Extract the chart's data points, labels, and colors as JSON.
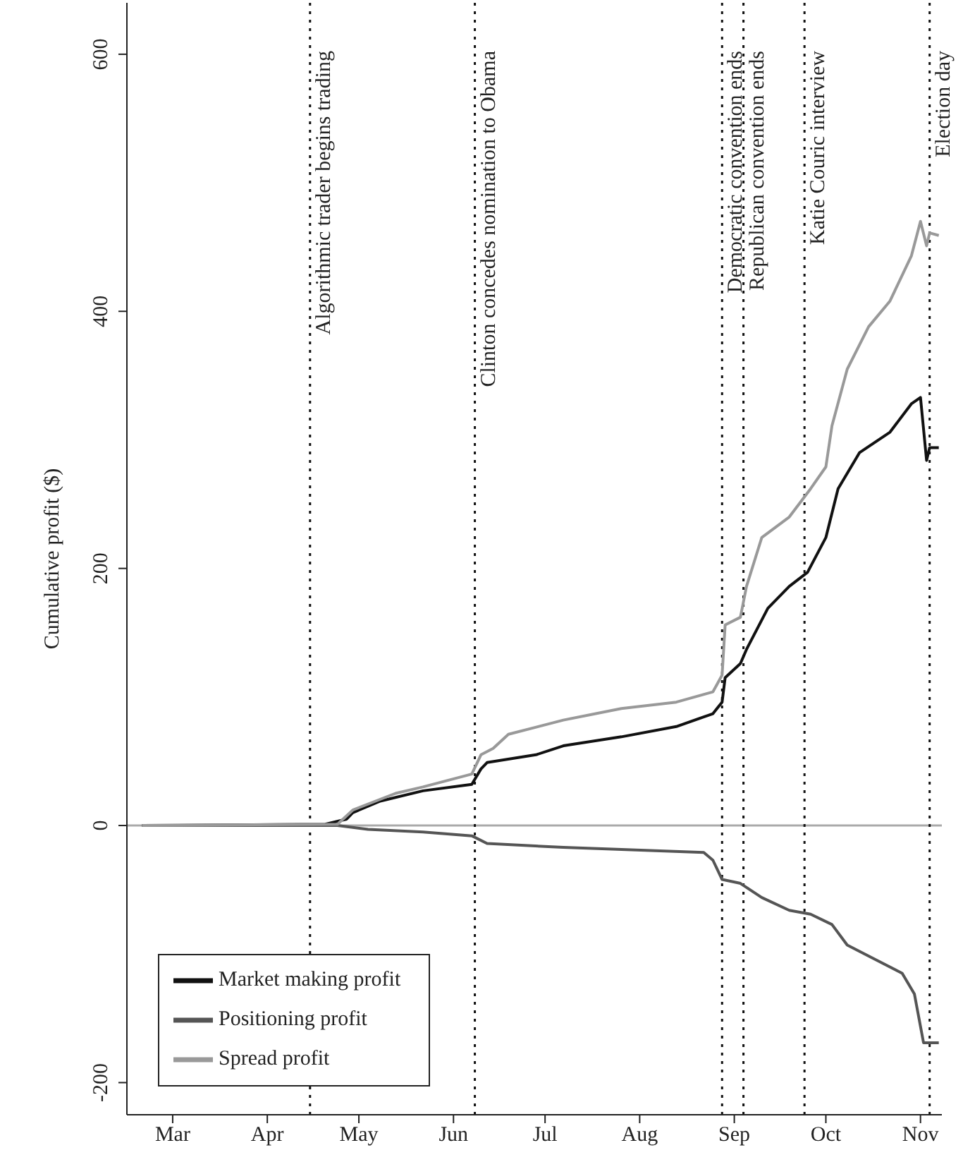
{
  "chart_data": {
    "type": "line",
    "ylabel": "Cumulative profit ($)",
    "xlim": [
      "--02-15",
      "--11-08"
    ],
    "xticks": [
      {
        "value": "--03-01",
        "label": "Mar"
      },
      {
        "value": "--04-01",
        "label": "Apr"
      },
      {
        "value": "--05-01",
        "label": "May"
      },
      {
        "value": "--06-01",
        "label": "Jun"
      },
      {
        "value": "--07-01",
        "label": "Jul"
      },
      {
        "value": "--08-01",
        "label": "Aug"
      },
      {
        "value": "--09-01",
        "label": "Sep"
      },
      {
        "value": "--10-01",
        "label": "Oct"
      },
      {
        "value": "--11-01",
        "label": "Nov"
      }
    ],
    "ylim": [
      -225,
      640
    ],
    "yticks": [
      -200,
      0,
      200,
      400,
      600
    ],
    "grid": false,
    "legend": "bottom left",
    "marker": "none",
    "line_style": "solid",
    "series": [
      {
        "name": "Market making profit",
        "color": "#111111",
        "x": [
          "--02-20",
          "--04-20",
          "--04-27",
          "--04-29",
          "--05-08",
          "--05-22",
          "--06-07",
          "--06-10",
          "--06-12",
          "--06-28",
          "--07-07",
          "--07-26",
          "--08-13",
          "--08-25",
          "--08-28",
          "--08-29",
          "--09-03",
          "--09-05",
          "--09-12",
          "--09-19",
          "--09-25",
          "--10-01",
          "--10-05",
          "--10-12",
          "--10-22",
          "--10-29",
          "--11-01",
          "--11-03",
          "--11-04",
          "--11-07"
        ],
        "values": [
          0,
          1,
          5,
          10,
          19,
          27,
          32,
          44,
          49,
          55,
          62,
          69,
          77,
          87,
          96,
          115,
          126,
          137,
          169,
          186,
          197,
          224,
          262,
          290,
          306,
          328,
          333,
          284,
          294,
          294
        ]
      },
      {
        "name": "Positioning profit",
        "color": "#555555",
        "x": [
          "--02-20",
          "--04-24",
          "--05-04",
          "--05-22",
          "--06-07",
          "--06-12",
          "--07-07",
          "--08-22",
          "--08-25",
          "--08-28",
          "--09-03",
          "--09-10",
          "--09-19",
          "--09-26",
          "--10-03",
          "--10-08",
          "--10-17",
          "--10-26",
          "--10-30",
          "--11-02",
          "--11-07"
        ],
        "values": [
          0,
          0,
          -3,
          -5,
          -8,
          -14,
          -17,
          -21,
          -27,
          -42,
          -45,
          -56,
          -66,
          -69,
          -77,
          -93,
          -104,
          -115,
          -131,
          -169,
          -169
        ]
      },
      {
        "name": "Spread profit",
        "color": "#999999",
        "x": [
          "--02-20",
          "--04-24",
          "--04-29",
          "--05-13",
          "--05-22",
          "--06-07",
          "--06-10",
          "--06-14",
          "--06-19",
          "--07-07",
          "--07-26",
          "--08-13",
          "--08-25",
          "--08-28",
          "--08-29",
          "--09-03",
          "--09-05",
          "--09-10",
          "--09-19",
          "--09-26",
          "--10-01",
          "--10-03",
          "--10-08",
          "--10-15",
          "--10-22",
          "--10-29",
          "--11-01",
          "--11-03",
          "--11-04",
          "--11-07"
        ],
        "values": [
          0,
          1,
          12,
          25,
          30,
          40,
          55,
          60,
          71,
          82,
          91,
          96,
          104,
          117,
          156,
          162,
          186,
          224,
          240,
          262,
          279,
          311,
          355,
          388,
          408,
          443,
          470,
          451,
          461,
          459
        ]
      }
    ],
    "ref_lines": [
      {
        "axis": "y",
        "value": 0,
        "color": "#aaaaaa",
        "line_style": "solid"
      },
      {
        "axis": "x",
        "value": "--04-15",
        "label": "Algorithmic trader begins trading",
        "color": "#111111",
        "line_style": "dotted"
      },
      {
        "axis": "x",
        "value": "--06-08",
        "label": "Clinton concedes nomination to Obama",
        "color": "#111111",
        "line_style": "dotted"
      },
      {
        "axis": "x",
        "value": "--08-28",
        "label": "Democratic convention ends",
        "color": "#111111",
        "line_style": "dotted"
      },
      {
        "axis": "x",
        "value": "--09-04",
        "label": "Republican convention ends",
        "color": "#111111",
        "line_style": "dotted"
      },
      {
        "axis": "x",
        "value": "--09-24",
        "label": "Katie Couric interview",
        "color": "#111111",
        "line_style": "dotted"
      },
      {
        "axis": "x",
        "value": "--11-04",
        "label": "Election day",
        "color": "#111111",
        "line_style": "dotted"
      }
    ]
  }
}
